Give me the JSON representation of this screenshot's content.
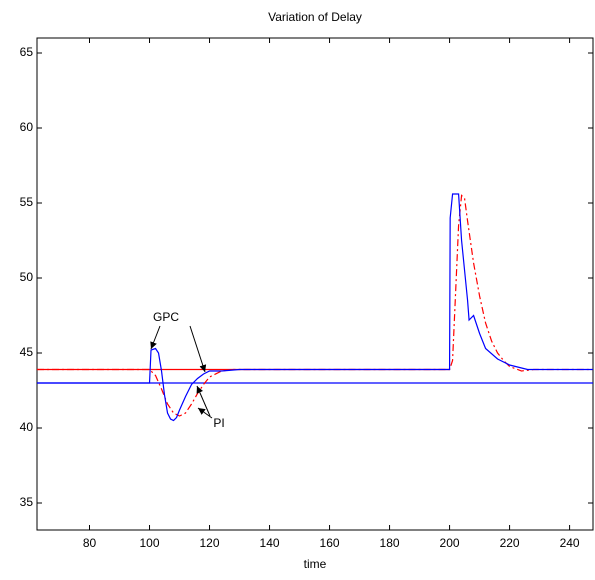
{
  "chart_data": {
    "type": "line",
    "title": "Variation of Delay",
    "x_label": "time",
    "xlim": [
      62.5,
      247.8
    ],
    "ylim": [
      33.2,
      66
    ],
    "xticks": [
      80,
      100,
      120,
      140,
      160,
      180,
      200,
      220,
      240
    ],
    "yticks": [
      35,
      40,
      45,
      50,
      55,
      60,
      65
    ],
    "series": [
      {
        "color": "#ff0000",
        "style": "solid",
        "x": [
          62.5,
          200
        ],
        "values": [
          43.9,
          43.9
        ]
      },
      {
        "color": "#0000ff",
        "style": "solid",
        "x": [
          62.5,
          247.8
        ],
        "values": [
          43,
          43
        ]
      },
      {
        "color": "#ff0000",
        "style": "dashdot",
        "x": [
          62.5,
          100,
          102,
          104,
          106,
          108,
          110,
          112,
          114,
          116,
          118,
          120,
          124,
          128,
          200,
          201,
          202,
          203,
          204,
          205,
          206,
          208,
          210,
          212,
          214,
          216,
          218,
          220,
          224,
          228,
          247.8
        ],
        "values": [
          43.9,
          43.9,
          43.5,
          42.6,
          41.6,
          41,
          40.8,
          41,
          41.6,
          42.3,
          42.9,
          43.4,
          43.8,
          43.9,
          43.9,
          44.5,
          49,
          53.5,
          55.5,
          55.3,
          53.8,
          51,
          48.8,
          47,
          45.8,
          45,
          44.5,
          44.1,
          43.8,
          43.9,
          43.9
        ]
      },
      {
        "color": "#0000ff",
        "style": "solid",
        "x": [
          62.5,
          100,
          100.5,
          102,
          103,
          104,
          105,
          106,
          107,
          108,
          109,
          110,
          112,
          114,
          116,
          118,
          120,
          124,
          130,
          200,
          200.2,
          201,
          203,
          204,
          205,
          206,
          206.5,
          208,
          210,
          212,
          216,
          220,
          226,
          232,
          247.8
        ],
        "values": [
          43,
          43,
          45.2,
          45.3,
          45,
          43.8,
          42.2,
          41,
          40.6,
          40.5,
          40.7,
          41.2,
          42.1,
          42.9,
          43.3,
          43.6,
          43.8,
          43.8,
          43.9,
          43.9,
          54,
          55.6,
          55.6,
          52.5,
          50.5,
          48.5,
          47.2,
          47.5,
          46.3,
          45.3,
          44.6,
          44.2,
          43.9,
          43.9,
          43.9
        ]
      }
    ],
    "annotations": [
      "GPC",
      "PI"
    ]
  }
}
